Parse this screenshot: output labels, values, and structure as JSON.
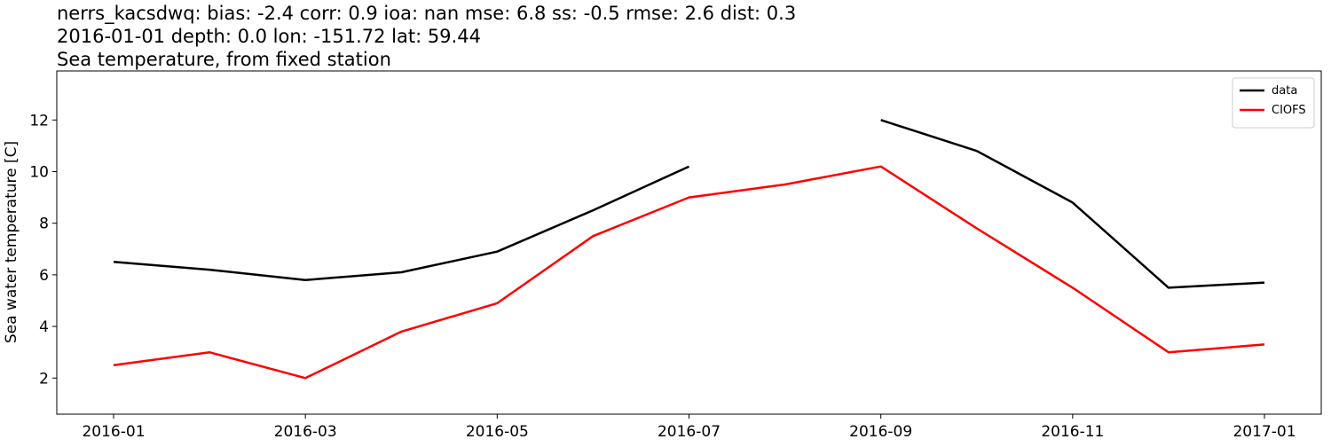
{
  "chart_data": {
    "type": "line",
    "title_lines": [
      "nerrs_kacsdwq: bias: -2.4  corr: 0.9  ioa: nan  mse: 6.8  ss: -0.5  rmse: 2.6  dist: 0.3",
      "2016-01-01 depth: 0.0 lon: -151.72 lat: 59.44",
      "Sea temperature, from fixed station"
    ],
    "y_label": "Sea water temperature [C]",
    "x": [
      "2016-01",
      "2016-02",
      "2016-03",
      "2016-04",
      "2016-05",
      "2016-06",
      "2016-07",
      "2016-08",
      "2016-09",
      "2016-10",
      "2016-11",
      "2016-12",
      "2017-01"
    ],
    "series": [
      {
        "name": "data",
        "color": "#000000",
        "values": [
          6.5,
          6.2,
          5.8,
          6.1,
          6.9,
          8.5,
          10.2,
          null,
          12.0,
          10.8,
          8.8,
          5.5,
          5.7
        ]
      },
      {
        "name": "CIOFS",
        "color": "#ff0000",
        "values": [
          2.5,
          3.0,
          2.0,
          3.8,
          4.9,
          7.5,
          9.0,
          9.5,
          10.2,
          7.8,
          5.5,
          3.0,
          3.3
        ]
      }
    ],
    "xlim": [
      "2016-01",
      "2017-01"
    ],
    "xticks": [
      "2016-01",
      "2016-03",
      "2016-05",
      "2016-07",
      "2016-09",
      "2016-11",
      "2017-01"
    ],
    "ylim": [
      0.6,
      13.9
    ],
    "yticks": [
      2,
      4,
      6,
      8,
      10,
      12
    ],
    "legend": "upper right"
  }
}
